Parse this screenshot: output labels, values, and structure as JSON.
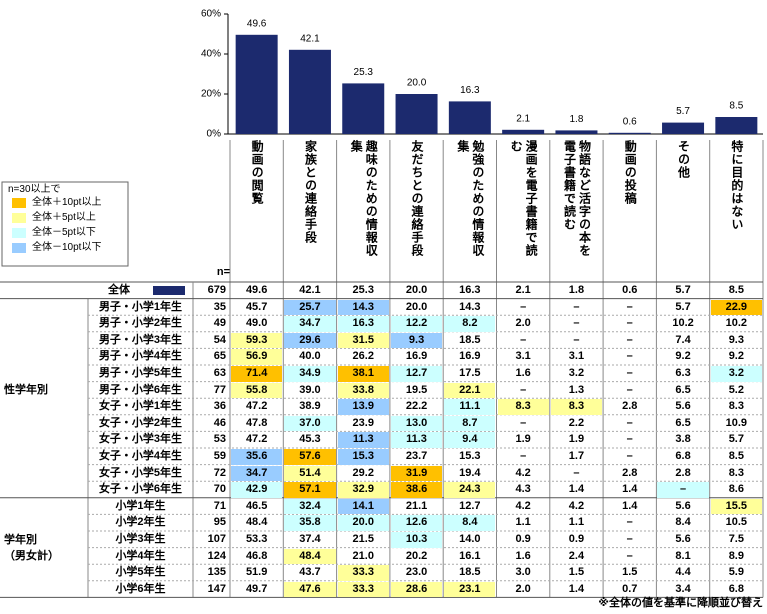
{
  "chart_data": {
    "type": "bar",
    "color": "#1c2a6e",
    "categories": [
      "動画の閲覧",
      "家族との連絡手段",
      "趣味のための情報収集",
      "友だちとの連絡手段",
      "勉強のための情報収集",
      "漫画を電子書籍で読む",
      "物語など活字の本を電子書籍で読む",
      "動画の投稿",
      "その他",
      "特に目的はない"
    ],
    "values": [
      49.6,
      42.1,
      25.3,
      20.0,
      16.3,
      2.1,
      1.8,
      0.6,
      5.7,
      8.5
    ],
    "value_labels": [
      "49.6",
      "42.1",
      "25.3",
      "20.0",
      "16.3",
      "2.1",
      "1.8",
      "0.6",
      "5.7",
      "8.5"
    ],
    "ylim": [
      0,
      60
    ],
    "yticks": [
      {
        "value": 0,
        "label": "0%"
      },
      {
        "value": 20,
        "label": "20%"
      },
      {
        "value": 40,
        "label": "40%"
      },
      {
        "value": 60,
        "label": "60%"
      }
    ],
    "grid": false
  },
  "legend": {
    "title": "n=30以上で",
    "items": [
      {
        "label": "全体＋10pt以上",
        "color": "#ffc000"
      },
      {
        "label": "全体＋5pt以上",
        "color": "#ffff99"
      },
      {
        "label": "全体－5pt以下",
        "color": "#ccffff"
      },
      {
        "label": "全体－10pt以下",
        "color": "#99ccff"
      }
    ]
  },
  "table": {
    "n_header": "n=",
    "overall": {
      "label": "全体",
      "n": 679
    },
    "groups": [
      {
        "label": "性学年別",
        "rows": [
          {
            "label": "男子・小学1年生",
            "n": 35,
            "values": [
              "45.7",
              "25.7",
              "14.3",
              "20.0",
              "14.3",
              "–",
              "–",
              "–",
              "5.7",
              "22.9"
            ],
            "shade": [
              null,
              3,
              3,
              null,
              null,
              null,
              null,
              null,
              null,
              0
            ]
          },
          {
            "label": "男子・小学2年生",
            "n": 49,
            "values": [
              "49.0",
              "34.7",
              "16.3",
              "12.2",
              "8.2",
              "2.0",
              "–",
              "–",
              "10.2",
              "10.2"
            ],
            "shade": [
              null,
              2,
              2,
              2,
              2,
              null,
              null,
              null,
              null,
              null
            ]
          },
          {
            "label": "男子・小学3年生",
            "n": 54,
            "values": [
              "59.3",
              "29.6",
              "31.5",
              "9.3",
              "18.5",
              "–",
              "–",
              "–",
              "7.4",
              "9.3"
            ],
            "shade": [
              1,
              3,
              1,
              3,
              null,
              null,
              null,
              null,
              null,
              null
            ]
          },
          {
            "label": "男子・小学4年生",
            "n": 65,
            "values": [
              "56.9",
              "40.0",
              "26.2",
              "16.9",
              "16.9",
              "3.1",
              "3.1",
              "–",
              "9.2",
              "9.2"
            ],
            "shade": [
              1,
              null,
              null,
              null,
              null,
              null,
              null,
              null,
              null,
              null
            ]
          },
          {
            "label": "男子・小学5年生",
            "n": 63,
            "values": [
              "71.4",
              "34.9",
              "38.1",
              "12.7",
              "17.5",
              "1.6",
              "3.2",
              "–",
              "6.3",
              "3.2"
            ],
            "shade": [
              0,
              2,
              0,
              2,
              null,
              null,
              null,
              null,
              null,
              2
            ]
          },
          {
            "label": "男子・小学6年生",
            "n": 77,
            "values": [
              "55.8",
              "39.0",
              "33.8",
              "19.5",
              "22.1",
              "–",
              "1.3",
              "–",
              "6.5",
              "5.2"
            ],
            "shade": [
              1,
              null,
              1,
              null,
              1,
              null,
              null,
              null,
              null,
              null
            ]
          },
          {
            "label": "女子・小学1年生",
            "n": 36,
            "values": [
              "47.2",
              "38.9",
              "13.9",
              "22.2",
              "11.1",
              "8.3",
              "8.3",
              "2.8",
              "5.6",
              "8.3"
            ],
            "shade": [
              null,
              null,
              3,
              null,
              2,
              1,
              1,
              null,
              null,
              null
            ]
          },
          {
            "label": "女子・小学2年生",
            "n": 46,
            "values": [
              "47.8",
              "37.0",
              "23.9",
              "13.0",
              "8.7",
              "–",
              "2.2",
              "–",
              "6.5",
              "10.9"
            ],
            "shade": [
              null,
              2,
              null,
              2,
              2,
              null,
              null,
              null,
              null,
              null
            ]
          },
          {
            "label": "女子・小学3年生",
            "n": 53,
            "values": [
              "47.2",
              "45.3",
              "11.3",
              "11.3",
              "9.4",
              "1.9",
              "1.9",
              "–",
              "3.8",
              "5.7"
            ],
            "shade": [
              null,
              null,
              3,
              2,
              2,
              null,
              null,
              null,
              null,
              null
            ]
          },
          {
            "label": "女子・小学4年生",
            "n": 59,
            "values": [
              "35.6",
              "57.6",
              "15.3",
              "23.7",
              "15.3",
              "–",
              "1.7",
              "–",
              "6.8",
              "8.5"
            ],
            "shade": [
              3,
              0,
              3,
              null,
              null,
              null,
              null,
              null,
              null,
              null
            ]
          },
          {
            "label": "女子・小学5年生",
            "n": 72,
            "values": [
              "34.7",
              "51.4",
              "29.2",
              "31.9",
              "19.4",
              "4.2",
              "–",
              "2.8",
              "2.8",
              "8.3"
            ],
            "shade": [
              3,
              1,
              null,
              0,
              null,
              null,
              null,
              null,
              null,
              null
            ]
          },
          {
            "label": "女子・小学6年生",
            "n": 70,
            "values": [
              "42.9",
              "57.1",
              "32.9",
              "38.6",
              "24.3",
              "4.3",
              "1.4",
              "1.4",
              "–",
              "8.6"
            ],
            "shade": [
              2,
              0,
              1,
              0,
              1,
              null,
              null,
              null,
              2,
              null
            ]
          }
        ]
      },
      {
        "label": "学年別（男女計）",
        "rows": [
          {
            "label": "小学1年生",
            "n": 71,
            "values": [
              "46.5",
              "32.4",
              "14.1",
              "21.1",
              "12.7",
              "4.2",
              "4.2",
              "1.4",
              "5.6",
              "15.5"
            ],
            "shade": [
              null,
              2,
              3,
              null,
              null,
              null,
              null,
              null,
              null,
              1
            ]
          },
          {
            "label": "小学2年生",
            "n": 95,
            "values": [
              "48.4",
              "35.8",
              "20.0",
              "12.6",
              "8.4",
              "1.1",
              "1.1",
              "–",
              "8.4",
              "10.5"
            ],
            "shade": [
              null,
              2,
              2,
              2,
              2,
              null,
              null,
              null,
              null,
              null
            ]
          },
          {
            "label": "小学3年生",
            "n": 107,
            "values": [
              "53.3",
              "37.4",
              "21.5",
              "10.3",
              "14.0",
              "0.9",
              "0.9",
              "–",
              "5.6",
              "7.5"
            ],
            "shade": [
              null,
              null,
              null,
              2,
              null,
              null,
              null,
              null,
              null,
              null
            ]
          },
          {
            "label": "小学4年生",
            "n": 124,
            "values": [
              "46.8",
              "48.4",
              "21.0",
              "20.2",
              "16.1",
              "1.6",
              "2.4",
              "–",
              "8.1",
              "8.9"
            ],
            "shade": [
              null,
              1,
              null,
              null,
              null,
              null,
              null,
              null,
              null,
              null
            ]
          },
          {
            "label": "小学5年生",
            "n": 135,
            "values": [
              "51.9",
              "43.7",
              "33.3",
              "23.0",
              "18.5",
              "3.0",
              "1.5",
              "1.5",
              "4.4",
              "5.9"
            ],
            "shade": [
              null,
              null,
              1,
              null,
              null,
              null,
              null,
              null,
              null,
              null
            ]
          },
          {
            "label": "小学6年生",
            "n": 147,
            "values": [
              "49.7",
              "47.6",
              "33.3",
              "28.6",
              "23.1",
              "2.0",
              "1.4",
              "0.7",
              "3.4",
              "6.8"
            ],
            "shade": [
              null,
              1,
              1,
              1,
              1,
              null,
              null,
              null,
              null,
              null
            ]
          }
        ]
      }
    ]
  },
  "note": "※全体の値を基準に降順並び替え"
}
